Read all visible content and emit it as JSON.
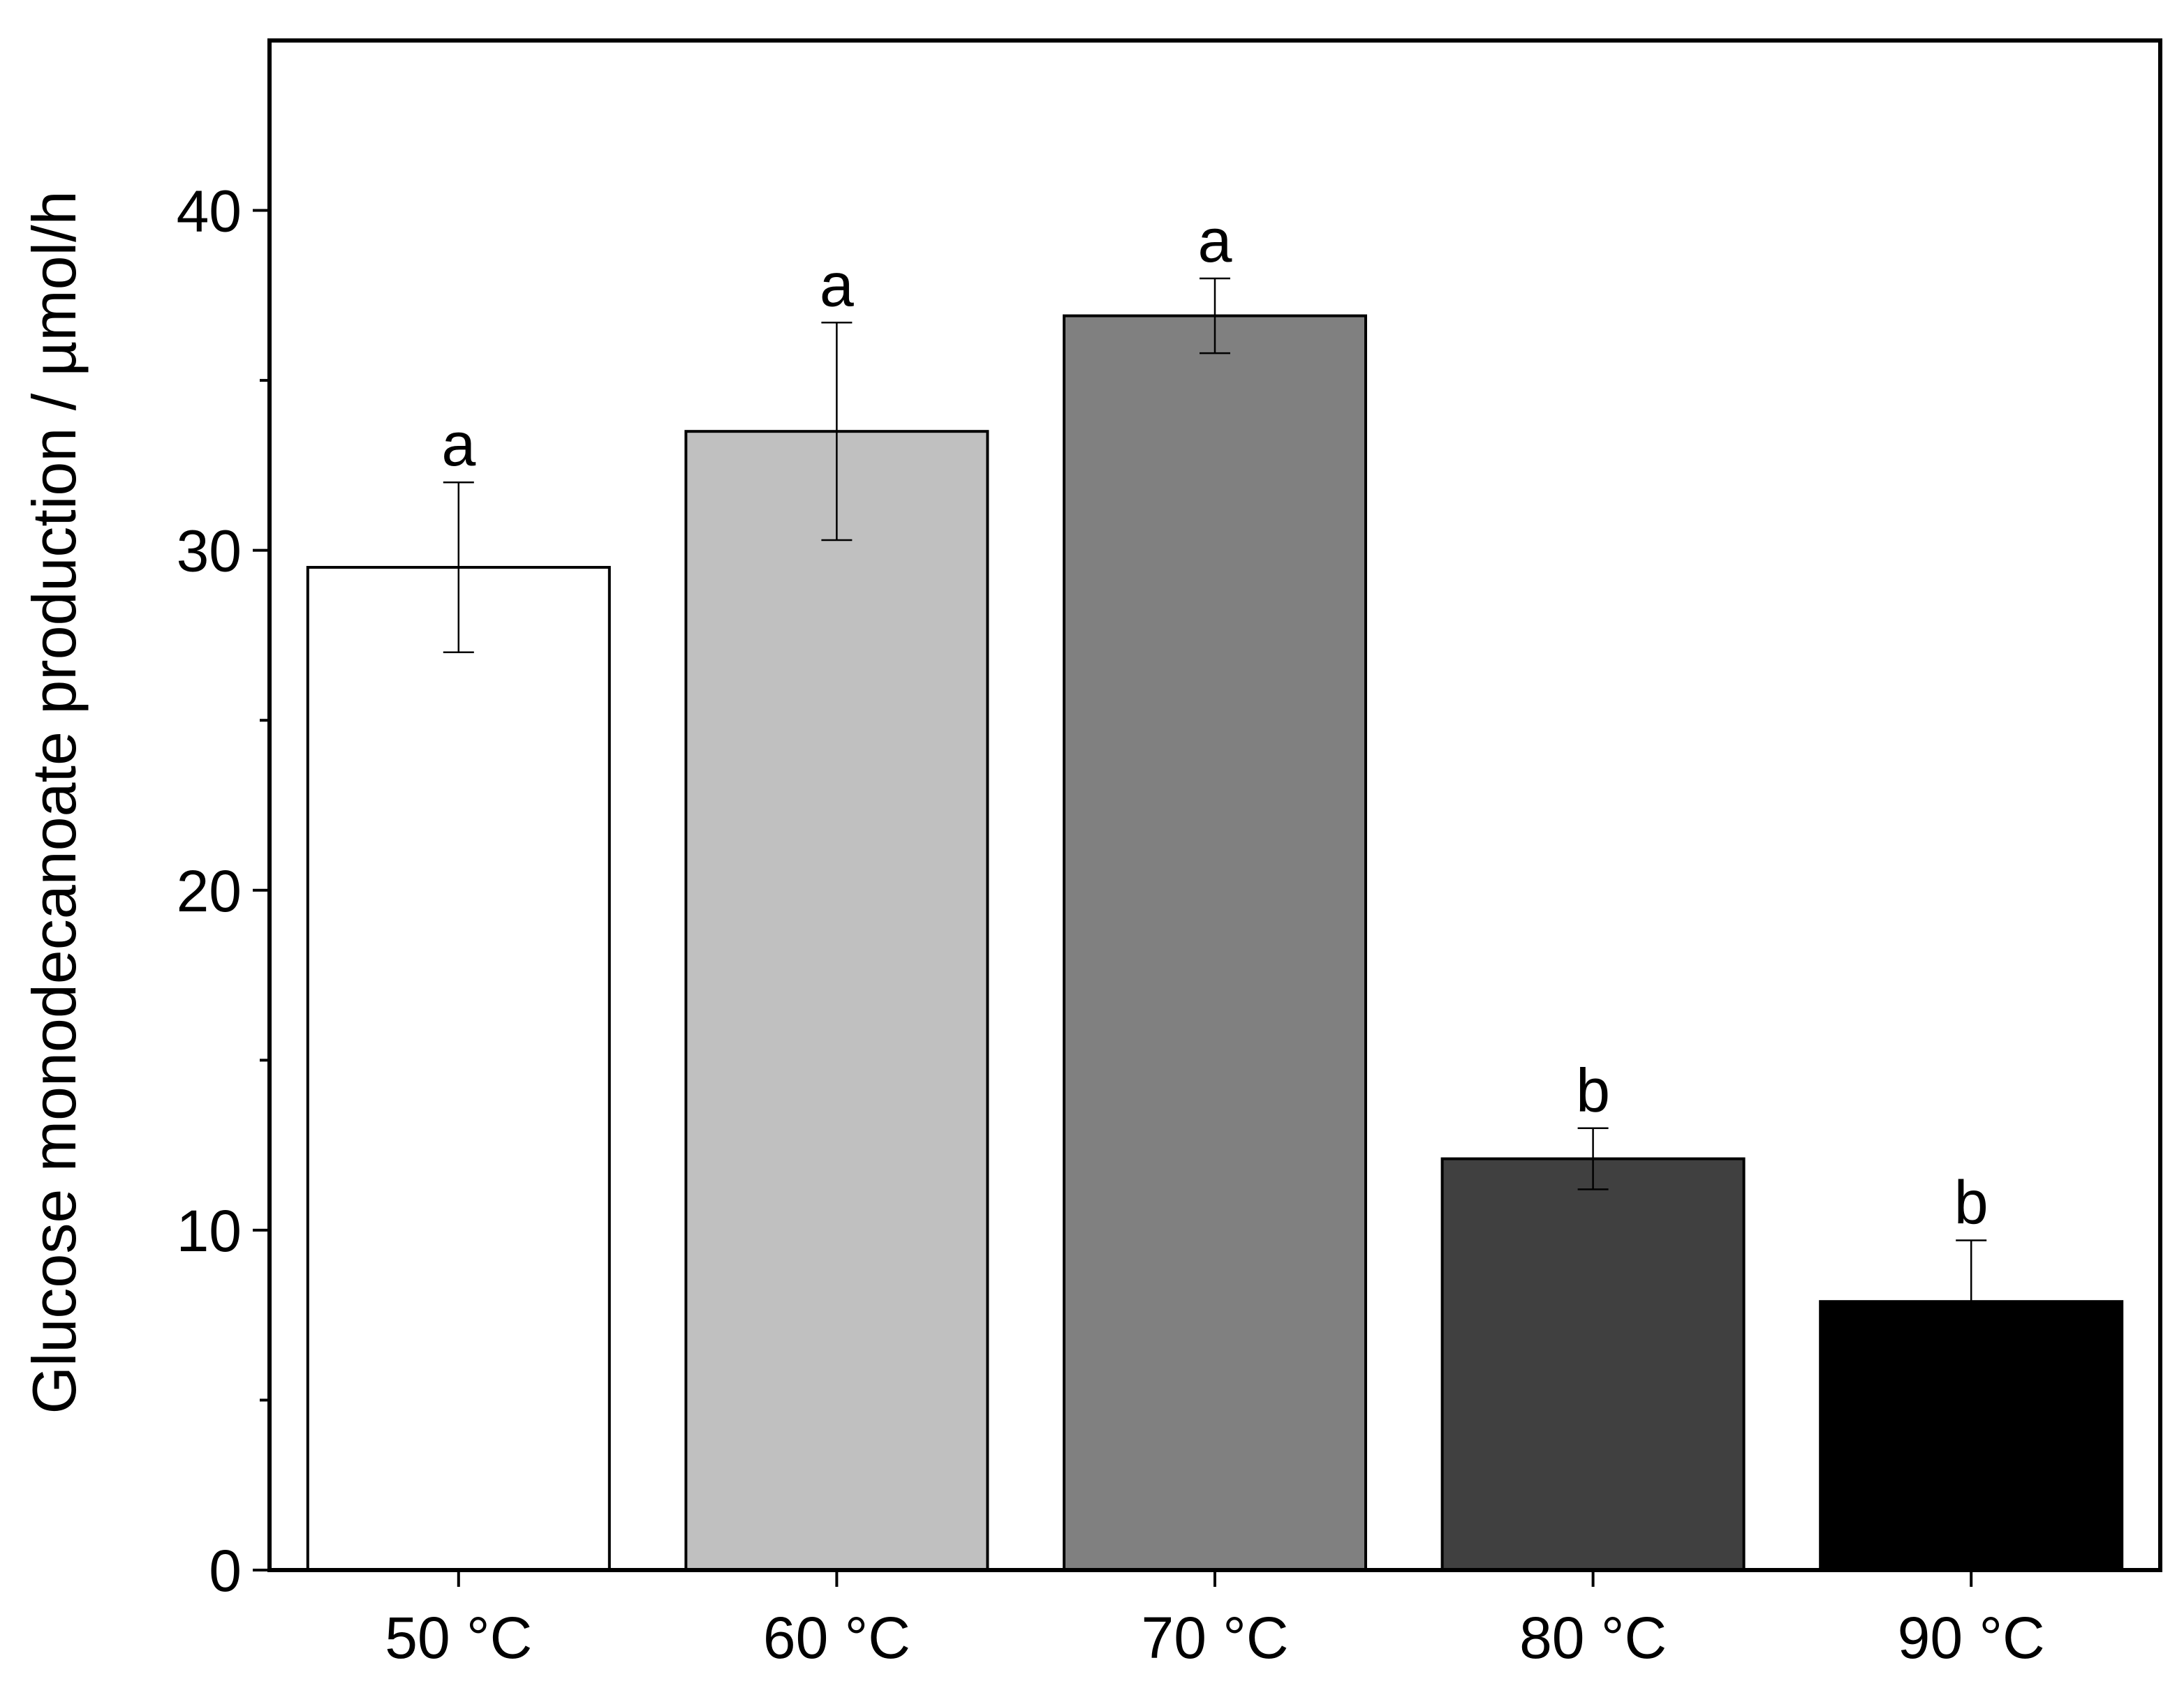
{
  "chart_data": {
    "type": "bar",
    "title": "",
    "xlabel": "",
    "ylabel": "Glucose monodecanoate production / µmol/h",
    "categories": [
      "50 °C",
      "60 °C",
      "70 °C",
      "80 °C",
      "90 °C"
    ],
    "values": [
      29.5,
      33.5,
      36.9,
      12.1,
      7.9
    ],
    "errors": [
      2.5,
      3.2,
      1.1,
      0.9,
      1.8
    ],
    "significance_letters": [
      "a",
      "a",
      "a",
      "b",
      "b"
    ],
    "bar_colors": [
      "#ffffff",
      "#c0c0c0",
      "#808080",
      "#404040",
      "#000000"
    ],
    "ylim": [
      0,
      45
    ],
    "yticks": [
      0,
      10,
      20,
      30,
      40
    ],
    "ytick_labels": [
      "0",
      "10",
      "20",
      "30",
      "40"
    ],
    "grid": false,
    "legend": "none"
  }
}
